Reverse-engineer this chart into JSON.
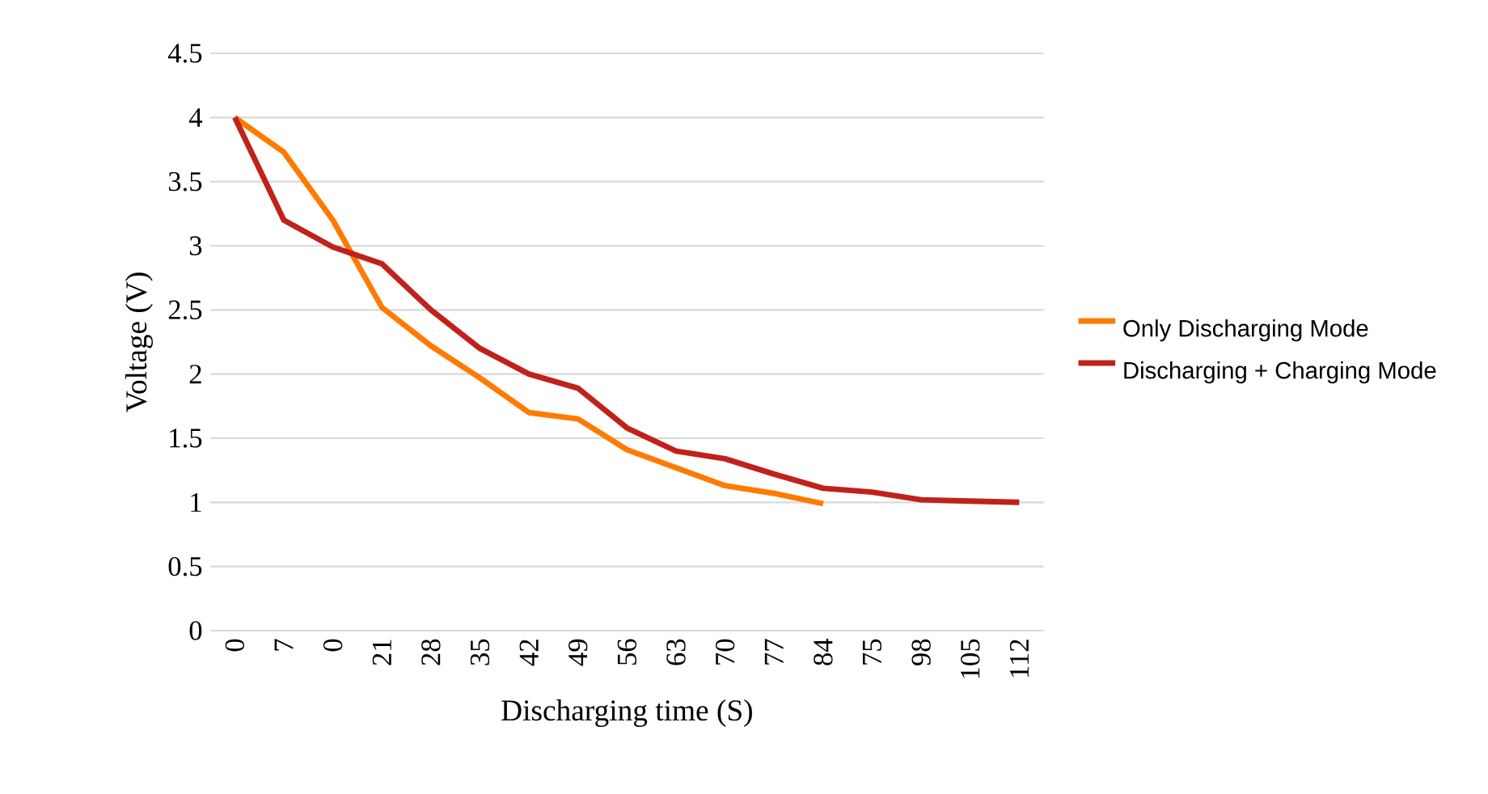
{
  "chart_data": {
    "type": "line",
    "xlabel": "Discharging time (S)",
    "ylabel": "Voltage (V)",
    "categories": [
      "0",
      "7",
      "0",
      "21",
      "28",
      "35",
      "42",
      "49",
      "56",
      "63",
      "70",
      "77",
      "84",
      "75",
      "98",
      "105",
      "112"
    ],
    "series": [
      {
        "name": "Only Discharging Mode",
        "color": "#ff7b00",
        "values": [
          4,
          3.73,
          3.2,
          2.52,
          2.22,
          1.97,
          1.7,
          1.65,
          1.41,
          1.27,
          1.13,
          1.07,
          0.99,
          null,
          null,
          null,
          null
        ]
      },
      {
        "name": "Discharging + Charging Mode",
        "color": "#c0221b",
        "values": [
          4,
          3.2,
          2.99,
          2.86,
          2.5,
          2.2,
          2.0,
          1.89,
          1.58,
          1.4,
          1.34,
          1.22,
          1.11,
          1.08,
          1.02,
          1.01,
          1.0
        ]
      }
    ],
    "ylim": [
      0,
      4.5
    ],
    "yticks": [
      0,
      0.5,
      1,
      1.5,
      2,
      2.5,
      3,
      3.5,
      4,
      4.5
    ],
    "grid": "y",
    "legend": "right",
    "marker": "none",
    "line_style": "solid"
  }
}
